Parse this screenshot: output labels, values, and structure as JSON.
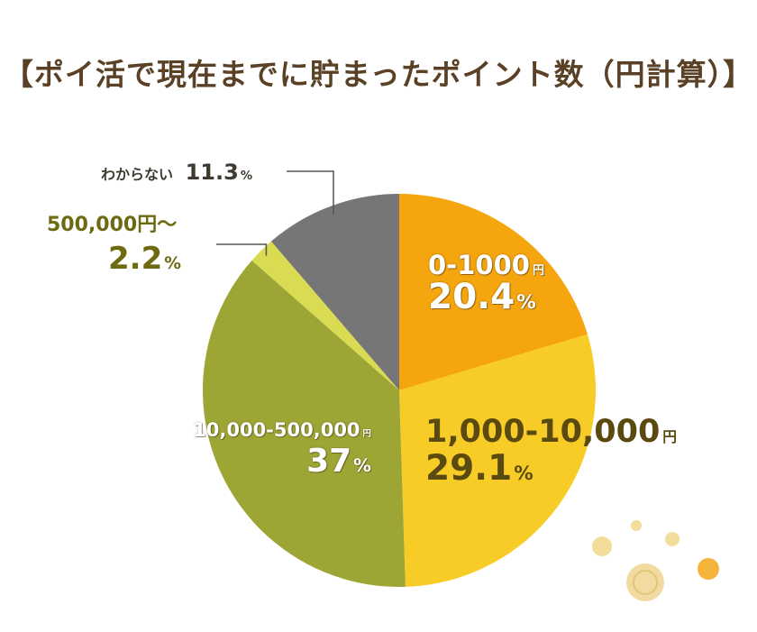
{
  "chart_data": {
    "type": "pie",
    "title": "【ポイ活で現在までに貯まったポイント数（円計算）】",
    "unit": "円",
    "percent_sign": "%",
    "slices": [
      {
        "label": "0-1000",
        "unit": "円",
        "value": 20.4,
        "color": "#f5a50e"
      },
      {
        "label": "1,000-10,000",
        "unit": "円",
        "value": 29.1,
        "color": "#f8cc26"
      },
      {
        "label": "10,000-500,000",
        "unit": "円",
        "value": 37.0,
        "color": "#9da634"
      },
      {
        "label": "500,000円～",
        "unit": "",
        "value": 2.2,
        "color": "#d9dc52"
      },
      {
        "label": "わからない",
        "unit": "",
        "value": 11.3,
        "color": "#767676"
      }
    ]
  }
}
